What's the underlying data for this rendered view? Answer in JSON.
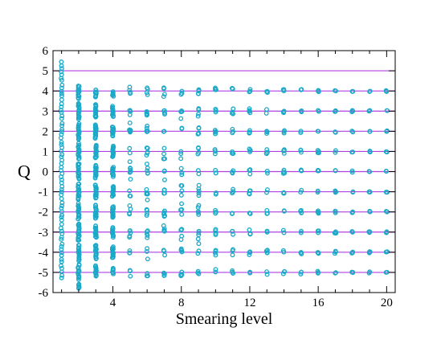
{
  "chart_data": {
    "type": "scatter",
    "xlabel": "Smearing level",
    "ylabel": "Q",
    "xlim": [
      0.5,
      20.5
    ],
    "ylim": [
      -6,
      6
    ],
    "x_ticks": [
      4,
      8,
      12,
      16,
      20
    ],
    "y_ticks": [
      -6,
      -5,
      -4,
      -3,
      -2,
      -1,
      0,
      1,
      2,
      3,
      4,
      5,
      6
    ],
    "x_tick_labels": [
      "4",
      "8",
      "12",
      "16",
      "20"
    ],
    "y_tick_labels": [
      "-6",
      "-5",
      "-4",
      "-3",
      "-2",
      "-1",
      "0",
      "1",
      "2",
      "3",
      "4",
      "5",
      "6"
    ],
    "reference_lines_y": [
      -5,
      -4,
      -3,
      -2,
      -1,
      0,
      1,
      2,
      3,
      4,
      5
    ],
    "reference_line_color": "#b040e0",
    "point_color": "#1aa8c8",
    "grid": false,
    "legend": "none",
    "smearing_levels": [
      1,
      2,
      3,
      4,
      5,
      6,
      7,
      8,
      9,
      10,
      11,
      12,
      13,
      14,
      15,
      16,
      17,
      18,
      19,
      20
    ],
    "column_extents": [
      {
        "level": 1,
        "min": -5.3,
        "max": 5.6
      },
      {
        "level": 2,
        "min": -5.8,
        "max": 4.3
      },
      {
        "level": 3,
        "min": -5.3,
        "max": 4.1
      },
      {
        "level": 4,
        "min": -5.1,
        "max": 4.0
      },
      {
        "level": 5,
        "min": -5.1,
        "max": 4.0
      },
      {
        "level": 6,
        "min": -5.1,
        "max": 4.0
      },
      {
        "level": 7,
        "min": -5.1,
        "max": 4.0
      },
      {
        "level": 8,
        "min": -5.1,
        "max": 4.0
      },
      {
        "level": 9,
        "min": -5.1,
        "max": 4.0
      },
      {
        "level": 10,
        "min": -5.1,
        "max": 4.0
      },
      {
        "level": 11,
        "min": -5.1,
        "max": 4.0
      },
      {
        "level": 12,
        "min": -5.1,
        "max": 4.0
      },
      {
        "level": 13,
        "min": -5.1,
        "max": 4.0
      },
      {
        "level": 14,
        "min": -5.1,
        "max": 4.0
      },
      {
        "level": 15,
        "min": -5.1,
        "max": 4.0
      },
      {
        "level": 16,
        "min": -5.1,
        "max": 4.0
      },
      {
        "level": 17,
        "min": -5.1,
        "max": 4.0
      },
      {
        "level": 18,
        "min": -5.1,
        "max": 4.0
      },
      {
        "level": 19,
        "min": -5.1,
        "max": 4.0
      },
      {
        "level": 20,
        "min": -5.1,
        "max": 4.0
      }
    ]
  }
}
